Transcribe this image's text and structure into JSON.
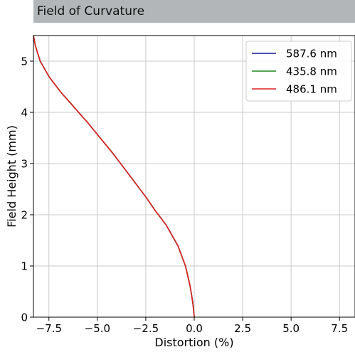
{
  "panel": {
    "title": "Field of Curvature"
  },
  "chart_data": {
    "type": "line",
    "xlabel": "Distortion (%)",
    "ylabel": "Field Height (mm)",
    "xlim": [
      -8.3,
      8.3
    ],
    "ylim": [
      0,
      5.5
    ],
    "xticks": [
      -7.5,
      -5.0,
      -2.5,
      0.0,
      2.5,
      5.0,
      7.5
    ],
    "xtick_labels": [
      "−7.5",
      "−5.0",
      "−2.5",
      "0.0",
      "2.5",
      "5.0",
      "7.5"
    ],
    "yticks": [
      0,
      1,
      2,
      3,
      4,
      5
    ],
    "ytick_labels": [
      "0",
      "1",
      "2",
      "3",
      "4",
      "5"
    ],
    "grid": true,
    "legend_position": "top-right",
    "series": [
      {
        "name": "587.6 nm",
        "color": "#1a1a9c",
        "x": [
          0.0,
          -0.02,
          -0.08,
          -0.21,
          -0.45,
          -0.85,
          -1.45,
          -2.05,
          -2.5,
          -3.0,
          -3.6,
          -4.2,
          -4.85,
          -5.5,
          -6.2,
          -6.9,
          -7.5,
          -7.95,
          -8.2,
          -8.3
        ],
        "y": [
          0.0,
          0.1,
          0.3,
          0.6,
          1.0,
          1.4,
          1.8,
          2.1,
          2.35,
          2.6,
          2.9,
          3.2,
          3.5,
          3.8,
          4.1,
          4.4,
          4.7,
          5.0,
          5.3,
          5.5
        ]
      },
      {
        "name": "435.8 nm",
        "color": "#1a8c1a",
        "x": [
          0.0,
          -0.02,
          -0.08,
          -0.21,
          -0.45,
          -0.85,
          -1.45,
          -2.05,
          -2.5,
          -3.0,
          -3.6,
          -4.2,
          -4.85,
          -5.5,
          -6.2,
          -6.9,
          -7.5,
          -7.95,
          -8.2,
          -8.3
        ],
        "y": [
          0.0,
          0.1,
          0.3,
          0.6,
          1.0,
          1.4,
          1.8,
          2.1,
          2.35,
          2.6,
          2.9,
          3.2,
          3.5,
          3.8,
          4.1,
          4.4,
          4.7,
          5.0,
          5.3,
          5.5
        ]
      },
      {
        "name": "486.1 nm",
        "color": "#e02020",
        "x": [
          0.0,
          -0.02,
          -0.08,
          -0.21,
          -0.45,
          -0.85,
          -1.45,
          -2.05,
          -2.5,
          -3.0,
          -3.6,
          -4.2,
          -4.85,
          -5.5,
          -6.2,
          -6.9,
          -7.5,
          -7.95,
          -8.2,
          -8.3
        ],
        "y": [
          0.0,
          0.1,
          0.3,
          0.6,
          1.0,
          1.4,
          1.8,
          2.1,
          2.35,
          2.6,
          2.9,
          3.2,
          3.5,
          3.8,
          4.1,
          4.4,
          4.7,
          5.0,
          5.3,
          5.5
        ]
      }
    ]
  }
}
